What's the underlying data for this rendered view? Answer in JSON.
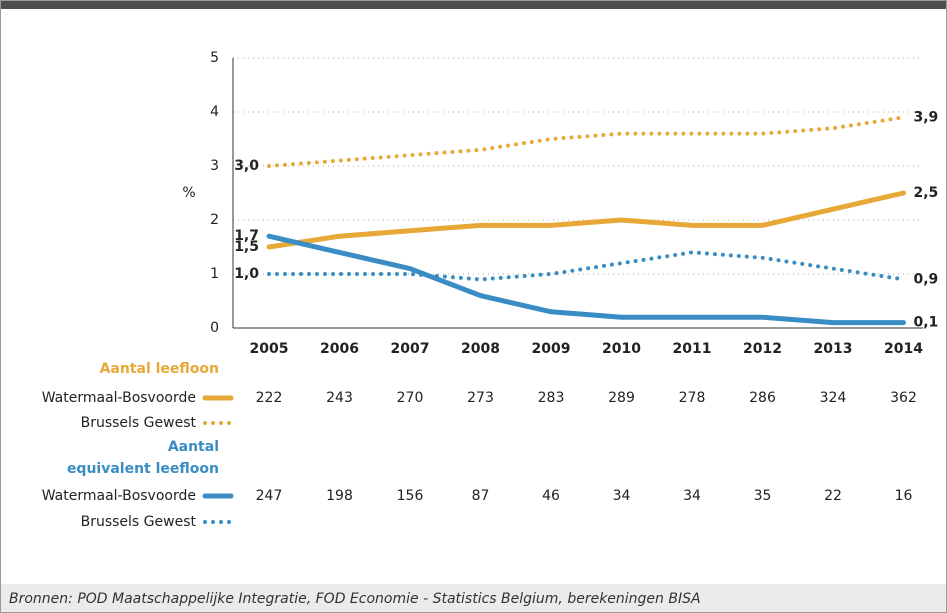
{
  "chart_data": {
    "type": "line",
    "categories": [
      "2005",
      "2006",
      "2007",
      "2008",
      "2009",
      "2010",
      "2011",
      "2012",
      "2013",
      "2014"
    ],
    "ylim": [
      0,
      5
    ],
    "yticks": [
      0,
      1,
      2,
      3,
      4,
      5
    ],
    "y_label": "%",
    "grid": true,
    "groups": [
      {
        "title": "Aantal leefloon",
        "color": "#e8a838",
        "series": [
          {
            "name": "Watermaal-Bosvoorde",
            "color": "#e8a838",
            "style": "solid",
            "values": [
              1.5,
              1.7,
              1.8,
              1.9,
              1.9,
              2.0,
              1.9,
              1.9,
              2.2,
              2.5
            ],
            "value_labels": [
              "1,5",
              null,
              null,
              null,
              null,
              null,
              null,
              null,
              null,
              "2,5"
            ],
            "counts": [
              222,
              243,
              270,
              273,
              283,
              289,
              278,
              286,
              324,
              362
            ]
          },
          {
            "name": "Brussels Gewest",
            "color": "#e8a838",
            "style": "dotted",
            "values": [
              3.0,
              3.1,
              3.2,
              3.3,
              3.5,
              3.6,
              3.6,
              3.6,
              3.7,
              3.9
            ],
            "value_labels": [
              "3,0",
              null,
              null,
              null,
              null,
              null,
              null,
              null,
              null,
              "3,9"
            ]
          }
        ]
      },
      {
        "title": "Aantal\nequivalent leefloon",
        "color": "#3a8cc4",
        "series": [
          {
            "name": "Watermaal-Bosvoorde",
            "color": "#3a8cc4",
            "style": "solid",
            "values": [
              1.7,
              1.4,
              1.1,
              0.6,
              0.3,
              0.2,
              0.2,
              0.2,
              0.1,
              0.1
            ],
            "value_labels": [
              "1,7",
              null,
              null,
              null,
              null,
              null,
              null,
              null,
              null,
              "0,1"
            ],
            "counts": [
              247,
              198,
              156,
              87,
              46,
              34,
              34,
              35,
              22,
              16
            ]
          },
          {
            "name": "Brussels Gewest",
            "color": "#3a8cc4",
            "style": "dotted",
            "values": [
              1.0,
              1.0,
              1.0,
              0.9,
              1.0,
              1.2,
              1.4,
              1.3,
              1.1,
              0.9
            ],
            "value_labels": [
              "1,0",
              null,
              null,
              null,
              null,
              null,
              null,
              null,
              null,
              "0,9"
            ]
          }
        ]
      }
    ]
  },
  "source": "Bronnen: POD Maatschappelijke Integratie, FOD Economie - Statistics Belgium, berekeningen BISA"
}
